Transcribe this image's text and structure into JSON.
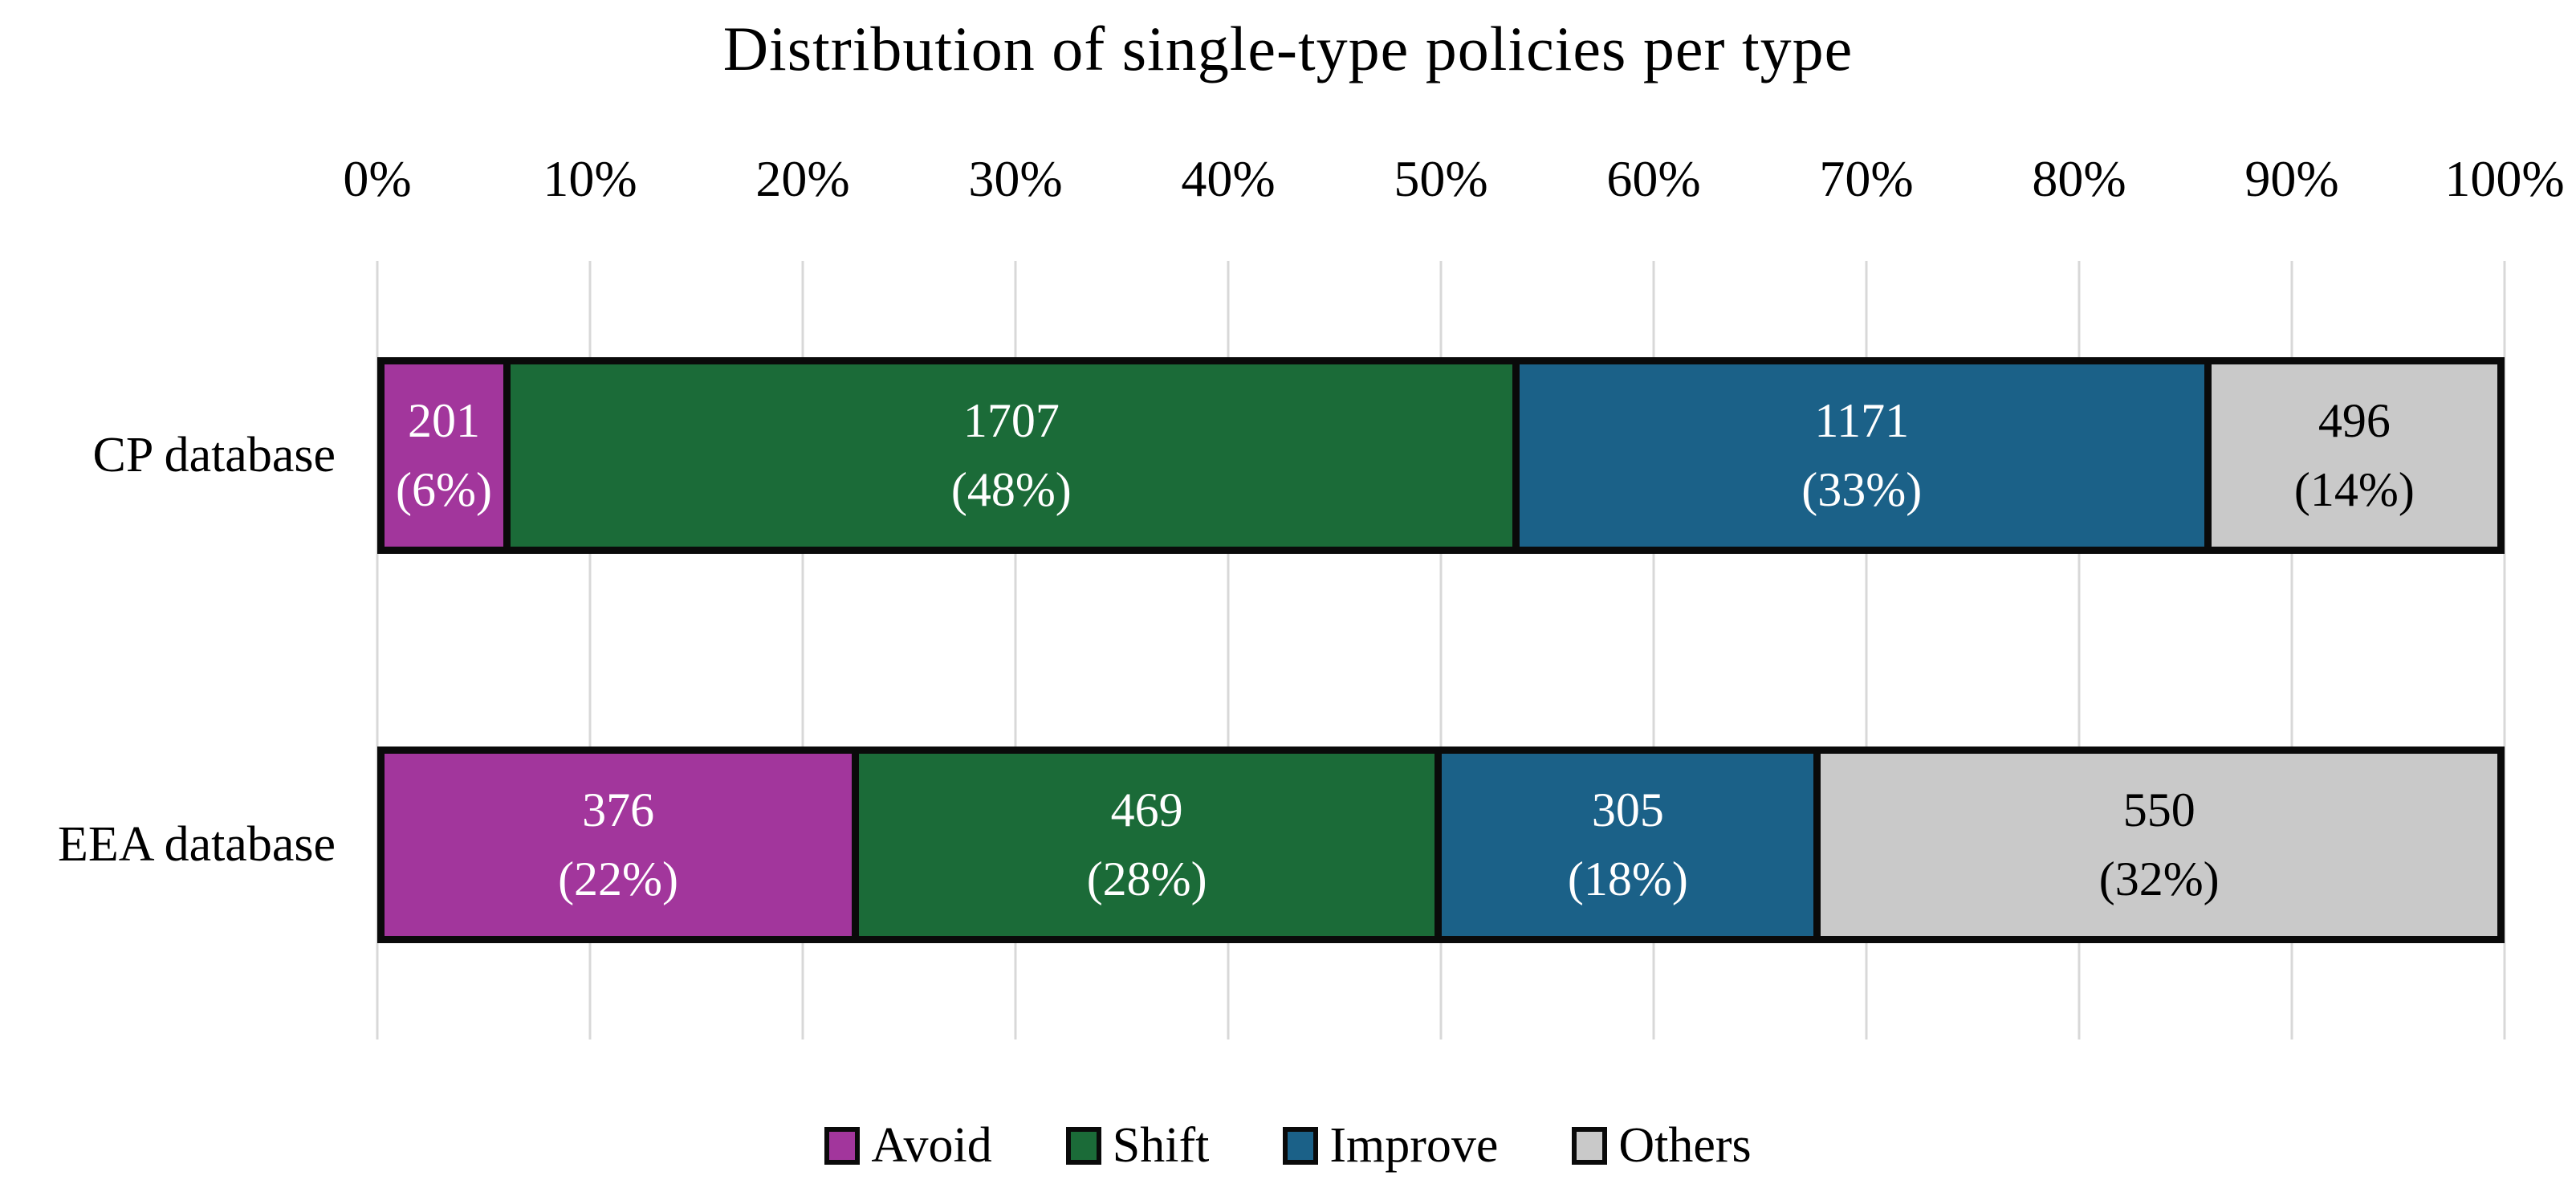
{
  "chart_data": {
    "type": "bar",
    "orientation": "horizontal",
    "stacked": true,
    "title": "Distribution of single-type policies per type",
    "categories": [
      "CP database",
      "EEA database"
    ],
    "series": [
      {
        "name": "Avoid",
        "color": "#a2369c",
        "text_color": "#ffffff",
        "values": [
          201,
          376
        ],
        "pct_labels": [
          "6%",
          "22%"
        ]
      },
      {
        "name": "Shift",
        "color": "#1b6b38",
        "text_color": "#ffffff",
        "values": [
          1707,
          469
        ],
        "pct_labels": [
          "48%",
          "28%"
        ]
      },
      {
        "name": "Improve",
        "color": "#1b6188",
        "text_color": "#ffffff",
        "values": [
          1171,
          305
        ],
        "pct_labels": [
          "33%",
          "18%"
        ]
      },
      {
        "name": "Others",
        "color": "#c9c9c9",
        "text_color": "#000000",
        "values": [
          496,
          550
        ],
        "pct_labels": [
          "14%",
          "32%"
        ]
      }
    ],
    "x_axis": {
      "position": "top",
      "min": 0,
      "max": 100,
      "ticks": [
        "0%",
        "10%",
        "20%",
        "30%",
        "40%",
        "50%",
        "60%",
        "70%",
        "80%",
        "90%",
        "100%"
      ]
    },
    "legend": {
      "position": "bottom",
      "entries": [
        "Avoid",
        "Shift",
        "Improve",
        "Others"
      ]
    },
    "grid": true
  }
}
